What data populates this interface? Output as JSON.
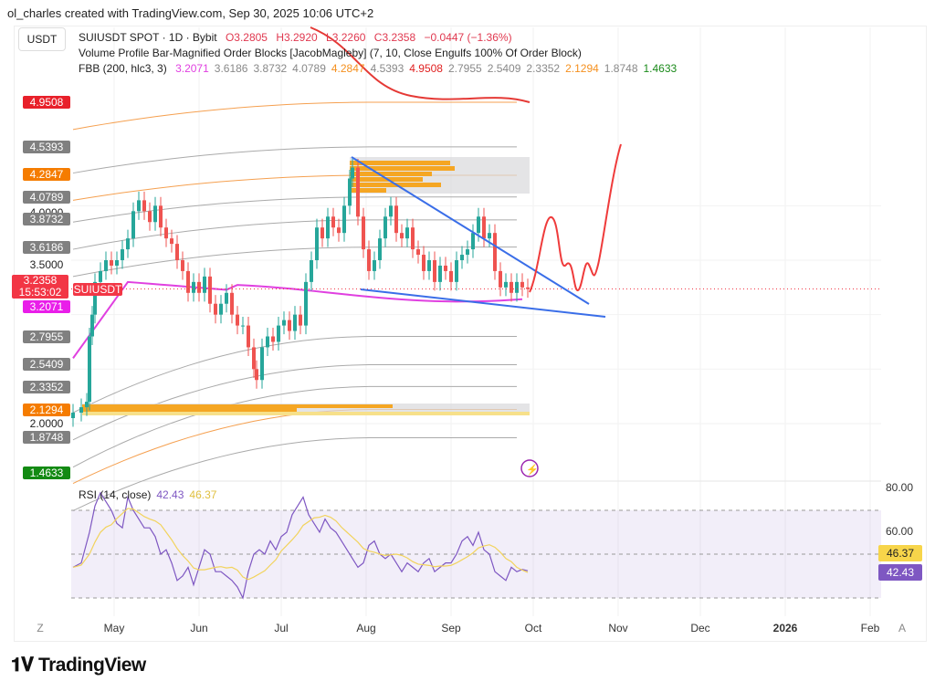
{
  "credit": "ol_charles created with TradingView.com, Sep 30, 2025 10:06 UTC+2",
  "currency_button": "USDT",
  "legend": {
    "symbol": "SUIUSDT SPOT · 1D · Bybit",
    "ohlc": [
      "O3.2805",
      "H3.2920",
      "L3.2260",
      "C3.2358",
      "−0.0447 (−1.36%)"
    ],
    "indicator1": "Volume Profile Bar-Magnified Order Blocks [JacobMagleby] (7, 10, Close Engulfs 100% Of Order Block)",
    "fbb_name": "FBB (200, hlc3, 3)",
    "fbb_values": [
      {
        "v": "3.2071",
        "c": "#e040e0"
      },
      {
        "v": "3.6186",
        "c": "#888"
      },
      {
        "v": "3.8732",
        "c": "#888"
      },
      {
        "v": "4.0789",
        "c": "#888"
      },
      {
        "v": "4.2847",
        "c": "#f5901e"
      },
      {
        "v": "4.5393",
        "c": "#888"
      },
      {
        "v": "4.9508",
        "c": "#e02020"
      },
      {
        "v": "2.7955",
        "c": "#888"
      },
      {
        "v": "2.5409",
        "c": "#888"
      },
      {
        "v": "2.3352",
        "c": "#888"
      },
      {
        "v": "2.1294",
        "c": "#f5901e"
      },
      {
        "v": "1.8748",
        "c": "#888"
      },
      {
        "v": "1.4633",
        "c": "#1a8a1a"
      }
    ]
  },
  "price_labels": [
    {
      "v": 4.9508,
      "t": "4.9508",
      "c": "#e8202a"
    },
    {
      "v": 4.5393,
      "t": "4.5393",
      "c": "#808080"
    },
    {
      "v": 4.2847,
      "t": "4.2847",
      "c": "#f57c00"
    },
    {
      "v": 4.0789,
      "t": "4.0789",
      "c": "#808080"
    },
    {
      "v": 3.8732,
      "t": "3.8732",
      "c": "#808080"
    },
    {
      "v": 3.6186,
      "t": "3.6186",
      "c": "#808080"
    },
    {
      "v": 3.2071,
      "t": "3.2071",
      "c": "#e91ee9"
    },
    {
      "v": 2.7955,
      "t": "2.7955",
      "c": "#808080"
    },
    {
      "v": 2.5409,
      "t": "2.5409",
      "c": "#808080"
    },
    {
      "v": 2.3352,
      "t": "2.3352",
      "c": "#808080"
    },
    {
      "v": 2.1294,
      "t": "2.1294",
      "c": "#f57c00"
    },
    {
      "v": 1.8748,
      "t": "1.8748",
      "c": "#808080"
    },
    {
      "v": 1.55,
      "t": "1.4633",
      "c": "#138a13"
    }
  ],
  "price_axis": [
    {
      "v": 4.0,
      "t": "4.0000"
    },
    {
      "v": 3.5,
      "t": "3.5000"
    },
    {
      "v": 2.0,
      "t": "2.0000"
    }
  ],
  "last_price": {
    "price": "3.2358",
    "countdown": "15:53:02",
    "symbol": "SUIUSDT",
    "color": "#f23645"
  },
  "rsi_axis": [
    {
      "v": 80,
      "t": "80.00"
    },
    {
      "v": 60,
      "t": "60.00"
    }
  ],
  "rsi_labels": {
    "ma": "46.37",
    "rsi": "42.43"
  },
  "time_axis": [
    {
      "d": 15,
      "t": "May"
    },
    {
      "d": 46,
      "t": "Jun"
    },
    {
      "d": 76,
      "t": "Jul"
    },
    {
      "d": 107,
      "t": "Aug"
    },
    {
      "d": 138,
      "t": "Sep"
    },
    {
      "d": 168,
      "t": "Oct"
    },
    {
      "d": 199,
      "t": "Nov"
    },
    {
      "d": 229,
      "t": "Dec"
    },
    {
      "d": 260,
      "t": "2026"
    },
    {
      "d": 291,
      "t": "Feb"
    }
  ],
  "axis_buttons": {
    "left": "Z",
    "right": "A"
  },
  "logo": "TradingView",
  "chart_data": [
    {
      "type": "line",
      "title": "SUIUSDT SPOT · 1D · Bybit",
      "x_unit": "days since Apr 16 2025",
      "ylim": [
        1.4,
        5.2
      ],
      "closes": [
        [
          0,
          2.1
        ],
        [
          3,
          2.15
        ],
        [
          5,
          2.2
        ],
        [
          6,
          2.8
        ],
        [
          7,
          3.0
        ],
        [
          8,
          3.3
        ],
        [
          10,
          3.4
        ],
        [
          12,
          3.5
        ],
        [
          14,
          3.45
        ],
        [
          16,
          3.5
        ],
        [
          18,
          3.6
        ],
        [
          20,
          3.7
        ],
        [
          22,
          3.95
        ],
        [
          24,
          4.05
        ],
        [
          26,
          3.95
        ],
        [
          28,
          3.85
        ],
        [
          30,
          4.0
        ],
        [
          32,
          3.8
        ],
        [
          34,
          3.7
        ],
        [
          36,
          3.65
        ],
        [
          38,
          3.5
        ],
        [
          40,
          3.4
        ],
        [
          42,
          3.2
        ],
        [
          44,
          3.3
        ],
        [
          46,
          3.2
        ],
        [
          48,
          3.35
        ],
        [
          50,
          3.1
        ],
        [
          52,
          3.0
        ],
        [
          54,
          3.1
        ],
        [
          56,
          3.2
        ],
        [
          58,
          3.0
        ],
        [
          60,
          2.9
        ],
        [
          62,
          2.9
        ],
        [
          64,
          2.7
        ],
        [
          66,
          2.5
        ],
        [
          67,
          2.4
        ],
        [
          69,
          2.7
        ],
        [
          71,
          2.8
        ],
        [
          73,
          2.75
        ],
        [
          75,
          2.9
        ],
        [
          77,
          2.95
        ],
        [
          79,
          2.85
        ],
        [
          81,
          3.0
        ],
        [
          83,
          2.9
        ],
        [
          85,
          3.3
        ],
        [
          87,
          3.5
        ],
        [
          89,
          3.8
        ],
        [
          91,
          3.7
        ],
        [
          93,
          3.9
        ],
        [
          95,
          3.8
        ],
        [
          97,
          3.75
        ],
        [
          99,
          4.0
        ],
        [
          101,
          4.25
        ],
        [
          102,
          4.35
        ],
        [
          104,
          3.9
        ],
        [
          106,
          3.6
        ],
        [
          108,
          3.4
        ],
        [
          110,
          3.5
        ],
        [
          112,
          3.7
        ],
        [
          114,
          3.9
        ],
        [
          116,
          4.0
        ],
        [
          118,
          3.75
        ],
        [
          120,
          3.7
        ],
        [
          122,
          3.8
        ],
        [
          124,
          3.6
        ],
        [
          126,
          3.55
        ],
        [
          128,
          3.4
        ],
        [
          130,
          3.5
        ],
        [
          132,
          3.3
        ],
        [
          134,
          3.45
        ],
        [
          136,
          3.4
        ],
        [
          138,
          3.3
        ],
        [
          140,
          3.5
        ],
        [
          142,
          3.55
        ],
        [
          144,
          3.6
        ],
        [
          146,
          3.75
        ],
        [
          148,
          3.9
        ],
        [
          150,
          3.7
        ],
        [
          152,
          3.75
        ],
        [
          154,
          3.4
        ],
        [
          156,
          3.25
        ],
        [
          158,
          3.3
        ],
        [
          160,
          3.2
        ],
        [
          162,
          3.3
        ],
        [
          164,
          3.25
        ],
        [
          166,
          3.2358
        ]
      ]
    },
    {
      "type": "line",
      "title": "RSI (14, close)",
      "ylim": [
        20,
        85
      ],
      "overbought": 70,
      "middle": 50,
      "oversold": 30,
      "ma_length": 14,
      "rsi": [
        [
          0,
          44
        ],
        [
          3,
          46
        ],
        [
          6,
          60
        ],
        [
          8,
          72
        ],
        [
          10,
          78
        ],
        [
          12,
          74
        ],
        [
          14,
          70
        ],
        [
          16,
          64
        ],
        [
          18,
          62
        ],
        [
          20,
          76
        ],
        [
          22,
          70
        ],
        [
          24,
          66
        ],
        [
          26,
          62
        ],
        [
          28,
          62
        ],
        [
          30,
          58
        ],
        [
          32,
          50
        ],
        [
          34,
          52
        ],
        [
          36,
          46
        ],
        [
          38,
          38
        ],
        [
          40,
          40
        ],
        [
          42,
          44
        ],
        [
          44,
          36
        ],
        [
          46,
          44
        ],
        [
          48,
          52
        ],
        [
          50,
          50
        ],
        [
          52,
          42
        ],
        [
          54,
          42
        ],
        [
          56,
          40
        ],
        [
          58,
          38
        ],
        [
          60,
          35
        ],
        [
          62,
          30
        ],
        [
          64,
          42
        ],
        [
          66,
          50
        ],
        [
          68,
          52
        ],
        [
          70,
          50
        ],
        [
          72,
          56
        ],
        [
          74,
          52
        ],
        [
          76,
          58
        ],
        [
          78,
          60
        ],
        [
          80,
          68
        ],
        [
          82,
          72
        ],
        [
          84,
          76
        ],
        [
          86,
          68
        ],
        [
          88,
          64
        ],
        [
          90,
          60
        ],
        [
          92,
          66
        ],
        [
          94,
          62
        ],
        [
          96,
          60
        ],
        [
          98,
          56
        ],
        [
          100,
          52
        ],
        [
          102,
          48
        ],
        [
          104,
          44
        ],
        [
          106,
          46
        ],
        [
          108,
          54
        ],
        [
          110,
          56
        ],
        [
          112,
          50
        ],
        [
          114,
          48
        ],
        [
          116,
          50
        ],
        [
          118,
          46
        ],
        [
          120,
          42
        ],
        [
          122,
          46
        ],
        [
          124,
          44
        ],
        [
          126,
          42
        ],
        [
          128,
          46
        ],
        [
          130,
          48
        ],
        [
          132,
          42
        ],
        [
          134,
          44
        ],
        [
          136,
          46
        ],
        [
          138,
          46
        ],
        [
          140,
          50
        ],
        [
          142,
          56
        ],
        [
          144,
          58
        ],
        [
          146,
          54
        ],
        [
          148,
          60
        ],
        [
          150,
          52
        ],
        [
          152,
          50
        ],
        [
          154,
          42
        ],
        [
          156,
          40
        ],
        [
          158,
          38
        ],
        [
          160,
          44
        ],
        [
          162,
          42
        ],
        [
          164,
          43
        ],
        [
          166,
          42.43
        ]
      ]
    }
  ],
  "colors": {
    "up": "#26a69a",
    "down": "#ef5350",
    "trendline": "#3a6ee8",
    "projection": "#ef3b3b",
    "rsi": "#7e57c2",
    "rsi_ma": "#f2d35c"
  }
}
